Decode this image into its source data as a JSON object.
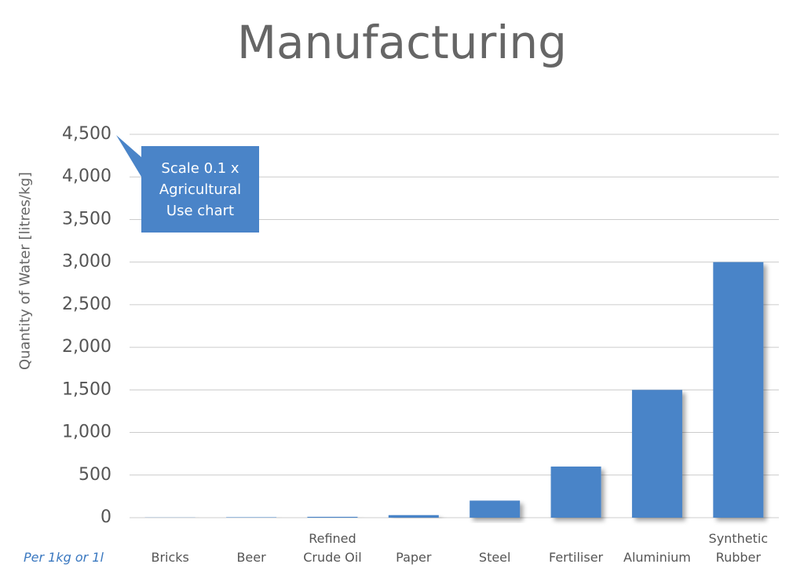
{
  "chart_data": {
    "type": "bar",
    "title": "Manufacturing",
    "y_label": "Quantity of Water [litres/kg]",
    "annotation": "Scale 0.1 x Agricultural Use chart",
    "footnote": "Per 1kg or 1l",
    "categories": [
      "Bricks",
      "Beer",
      "Refined Crude Oil",
      "Paper",
      "Steel",
      "Fertiliser",
      "Aluminium",
      "Synthetic Rubber"
    ],
    "values": [
      2,
      5,
      10,
      30,
      200,
      600,
      1500,
      3000
    ],
    "color": "#4a84c8",
    "ylim": [
      0,
      4500
    ],
    "yticks": [
      0,
      500,
      {
        "value": 1000,
        "label": "1,000"
      },
      {
        "value": 1500,
        "label": "1,500"
      },
      {
        "value": 2000,
        "label": "2,000"
      },
      {
        "value": 2500,
        "label": "2,500"
      },
      {
        "value": 3000,
        "label": "3,000"
      },
      {
        "value": 3500,
        "label": "3,500"
      },
      {
        "value": 4000,
        "label": "4,000"
      },
      {
        "value": 4500,
        "label": "4,500"
      }
    ],
    "grid": true
  }
}
